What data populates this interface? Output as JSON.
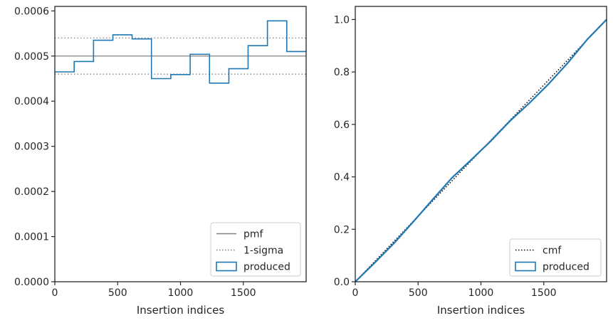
{
  "chart_data": [
    {
      "type": "step",
      "title": "",
      "xlabel": "Insertion indices",
      "ylabel": "",
      "xlim": [
        0,
        2000
      ],
      "ylim": [
        0,
        0.00061
      ],
      "x_ticks": [
        0,
        500,
        1000,
        1500
      ],
      "x_tick_labels": [
        "0",
        "500",
        "1000",
        "1500"
      ],
      "y_ticks": [
        0,
        0.0001,
        0.0002,
        0.0003,
        0.0004,
        0.0005,
        0.0006
      ],
      "y_tick_labels": [
        "0.0000",
        "0.0001",
        "0.0002",
        "0.0003",
        "0.0004",
        "0.0005",
        "0.0006"
      ],
      "grid": false,
      "legend_position": "lower-right",
      "reference_lines": [
        {
          "name": "pmf",
          "y": 0.0005,
          "style": "solid",
          "color": "#808080"
        },
        {
          "name": "1-sigma",
          "y": 0.00054,
          "style": "dotted",
          "color": "#808080"
        },
        {
          "name": "1-sigma",
          "y": 0.00046,
          "style": "dotted",
          "color": "#808080"
        }
      ],
      "series": [
        {
          "name": "produced",
          "color": "#1f77b4",
          "bin_edges": [
            0,
            154,
            308,
            462,
            615,
            769,
            923,
            1077,
            1231,
            1385,
            1538,
            1692,
            1846,
            2000
          ],
          "values": [
            0.000465,
            0.000488,
            0.000535,
            0.000547,
            0.000538,
            0.00045,
            0.000459,
            0.000504,
            0.00044,
            0.000472,
            0.000523,
            0.000578,
            0.00051
          ]
        }
      ],
      "legend": [
        {
          "label": "pmf",
          "kind": "solid-line",
          "color": "#808080"
        },
        {
          "label": "1-sigma",
          "kind": "dotted-line",
          "color": "#808080"
        },
        {
          "label": "produced",
          "kind": "box",
          "color": "#1f77b4"
        }
      ]
    },
    {
      "type": "line",
      "title": "",
      "xlabel": "Insertion indices",
      "ylabel": "",
      "xlim": [
        0,
        2000
      ],
      "ylim": [
        0,
        1.05
      ],
      "x_ticks": [
        0,
        500,
        1000,
        1500
      ],
      "x_tick_labels": [
        "0",
        "500",
        "1000",
        "1500"
      ],
      "y_ticks": [
        0,
        0.2,
        0.4,
        0.6,
        0.8,
        1.0
      ],
      "y_tick_labels": [
        "0.0",
        "0.2",
        "0.4",
        "0.6",
        "0.8",
        "1.0"
      ],
      "grid": false,
      "legend_position": "lower-right",
      "series": [
        {
          "name": "cmf",
          "style": "dotted",
          "color": "#000000",
          "x": [
            0,
            2000
          ],
          "y": [
            0,
            1.0
          ]
        },
        {
          "name": "produced",
          "style": "solid",
          "color": "#1f77b4",
          "x": [
            0,
            154,
            308,
            462,
            615,
            769,
            923,
            1077,
            1231,
            1385,
            1538,
            1692,
            1846,
            2000
          ],
          "y": [
            0,
            0.072,
            0.147,
            0.229,
            0.313,
            0.396,
            0.465,
            0.536,
            0.613,
            0.681,
            0.754,
            0.835,
            0.924,
            1.0
          ]
        }
      ],
      "legend": [
        {
          "label": "cmf",
          "kind": "dotted-line",
          "color": "#000000"
        },
        {
          "label": "produced",
          "kind": "box",
          "color": "#1f77b4"
        }
      ]
    }
  ]
}
